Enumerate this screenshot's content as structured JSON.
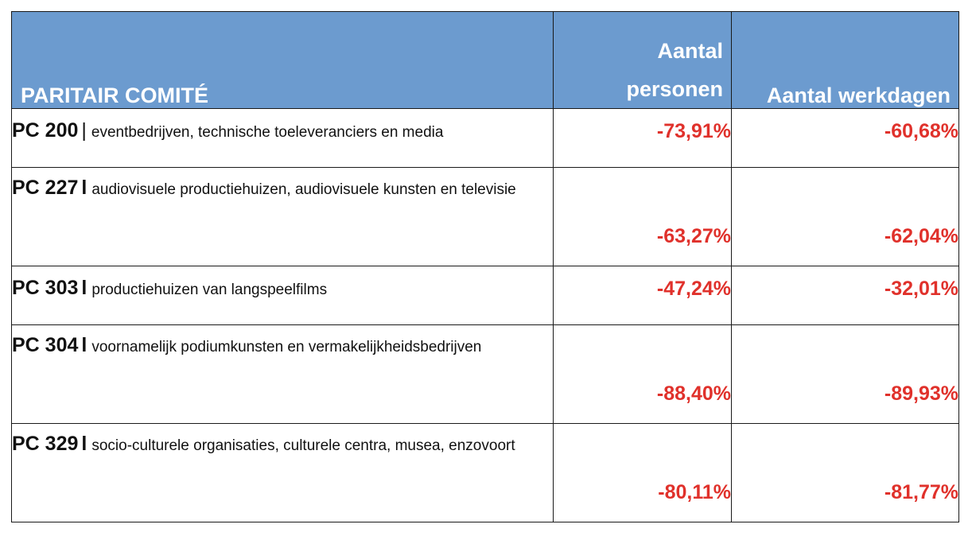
{
  "header": {
    "committee": "PARITAIR COMITÉ",
    "persons_line1": "Aantal",
    "persons_line2": "personen",
    "workdays": "Aantal werkdagen"
  },
  "rows": [
    {
      "code": "PC 200",
      "separator": "|",
      "description": "eventbedrijven, technische toeleveranciers en media",
      "persons": "-73,91%",
      "workdays": "-60,68%"
    },
    {
      "code": "PC 227",
      "separator": "l",
      "description": "audiovisuele productiehuizen, audiovisuele kunsten en televisie",
      "persons": "-63,27%",
      "workdays": "-62,04%"
    },
    {
      "code": "PC 303",
      "separator": "l",
      "description": "productiehuizen van langspeelfilms",
      "persons": "-47,24%",
      "workdays": "-32,01%"
    },
    {
      "code": "PC 304",
      "separator": "l",
      "description": "voornamelijk podiumkunsten en vermakelijkheidsbedrijven",
      "persons": "-88,40%",
      "workdays": "-89,93%"
    },
    {
      "code": "PC 329",
      "separator": "l",
      "description": "socio-culturele organisaties, culturele centra, musea, enzovoort",
      "persons": "-80,11%",
      "workdays": "-81,77%"
    }
  ],
  "colors": {
    "header_bg": "#6c9bcf",
    "header_text": "#ffffff",
    "value_text": "#e0312b"
  }
}
